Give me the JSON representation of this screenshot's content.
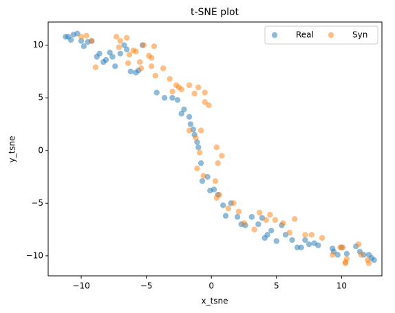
{
  "chart_data": {
    "type": "scatter",
    "title": "t-SNE plot",
    "x_label": "x_tsne",
    "y_label": "y_tsne",
    "xlim": [
      -12.54,
      13.1
    ],
    "ylim": [
      -11.9,
      12.2
    ],
    "xticks": [
      {
        "value": -10,
        "label": "−10"
      },
      {
        "value": -5,
        "label": "−5"
      },
      0,
      5,
      10
    ],
    "yticks": [
      {
        "value": -10,
        "label": "−10"
      },
      {
        "value": -5,
        "label": "−5"
      },
      0,
      5,
      10
    ],
    "legend": "upper right",
    "alpha": 0.5,
    "series": [
      {
        "name": "Real",
        "color": "#1f77b4",
        "x": [
          -11.2,
          -11,
          -10.8,
          -10.6,
          -10.3,
          -10,
          -9.8,
          -9.5,
          -9.2,
          -8.8,
          -8.6,
          -8.3,
          -8.1,
          -7.8,
          -7.6,
          -7.4,
          -7,
          -6.7,
          -6.5,
          -6.2,
          -5.8,
          -5.6,
          -5.3,
          -4.2,
          -3.6,
          -3,
          -2.6,
          -2.3,
          -2.1,
          -1.7,
          -1.6,
          -1.4,
          -1.3,
          -1.1,
          -1,
          -0.8,
          -0.7,
          -0.3,
          -0.1,
          0.2,
          0.5,
          0.9,
          1.1,
          1.5,
          2,
          2.3,
          2.6,
          3.1,
          3.6,
          3.9,
          4.1,
          4.3,
          4.6,
          5,
          5.4,
          5.7,
          6.2,
          6.6,
          6.9,
          7.2,
          7.5,
          7.9,
          8.2,
          9.3,
          9.4,
          9.7,
          10,
          10.4,
          11.1,
          11.4,
          11.7,
          12.1,
          12.3,
          12.5
        ],
        "values": [
          10.8,
          10.8,
          10.5,
          11,
          11.1,
          10.4,
          9.9,
          10.3,
          10.4,
          8.9,
          9.2,
          8.4,
          8.6,
          9.3,
          8.9,
          8,
          9.2,
          10,
          9.6,
          7.5,
          7.4,
          7.6,
          10,
          5.5,
          5,
          5,
          4.8,
          3.5,
          3.9,
          3.2,
          2.5,
          2,
          1.5,
          0.8,
          0.3,
          -1.2,
          -2.9,
          -2.5,
          -3.8,
          -3.7,
          -4.2,
          -5.2,
          -6.2,
          -5,
          -6.3,
          -7,
          -7.1,
          -6.3,
          -7,
          -6.4,
          -8.3,
          -8,
          -7.6,
          -8.6,
          -7.1,
          -8,
          -8.5,
          -9.2,
          -9.2,
          -8.5,
          -8.9,
          -8.8,
          -9,
          -9.3,
          -9.6,
          -9.9,
          -9.2,
          -9.8,
          -9.1,
          -9.6,
          -9.9,
          -9.9,
          -10.2,
          -10.4
        ]
      },
      {
        "name": "Syn",
        "color": "#ff7f0e",
        "x": [
          -10,
          -9.6,
          -9.2,
          -8.9,
          -7.3,
          -7,
          -7.1,
          -6.5,
          -6.3,
          -6,
          -5.8,
          -5.5,
          -5.2,
          -5.4,
          -6.4,
          -4.8,
          -4.6,
          -4.4,
          -4.3,
          -4.6,
          -3.7,
          -3.2,
          -3,
          -2.7,
          -2.5,
          -2.3,
          -1.7,
          -1.3,
          -1,
          -0.5,
          -0.5,
          -0.2,
          -1.7,
          -1.2,
          -0.8,
          -1.1,
          -0.6,
          -0.9,
          0.4,
          0.5,
          0.8,
          0.3,
          0.6,
          0.4,
          1.3,
          1.7,
          2.1,
          2.5,
          3.3,
          3.7,
          4.2,
          4.5,
          4.9,
          5.5,
          6.4,
          6,
          7.2,
          7.7,
          8.5,
          9.3,
          9.9,
          10.1,
          10.4,
          10.3,
          10.3,
          11.5,
          11.3,
          12.1,
          12
        ],
        "values": [
          10.8,
          10.9,
          10.4,
          7.9,
          10.8,
          10.4,
          9.8,
          10.7,
          9.1,
          9.5,
          9.4,
          8.4,
          10,
          7.8,
          8.3,
          9,
          8.8,
          9.9,
          7.1,
          8,
          7.8,
          6.8,
          5.6,
          6.2,
          6,
          5.8,
          6.2,
          5.4,
          6,
          5.5,
          4.6,
          4.3,
          1.9,
          1.2,
          1.9,
          -1.7,
          -2.4,
          -0.2,
          0.3,
          -1.2,
          -0.5,
          -2.9,
          -4.2,
          -4.5,
          -5.5,
          -5,
          -5.8,
          -6.9,
          -7.5,
          -5.9,
          -6.6,
          -6.1,
          -6.6,
          -6.9,
          -6.5,
          -7.8,
          -8,
          -8,
          -8.3,
          -9.9,
          -9.2,
          -9.2,
          -10.3,
          -10.7,
          -10.6,
          -9.9,
          -8.9,
          -10.7,
          -10.4
        ]
      }
    ]
  }
}
